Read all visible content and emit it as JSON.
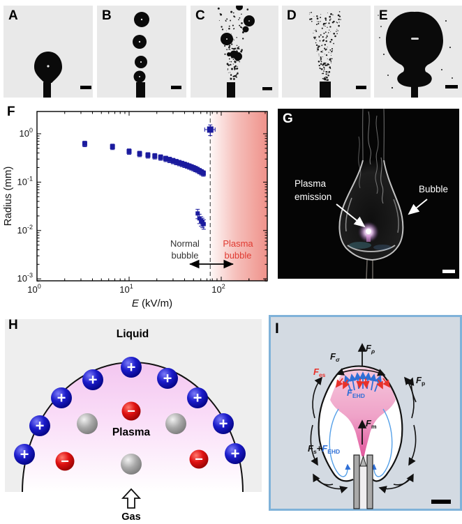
{
  "colors": {
    "marker_navy": "#1b1b9e",
    "plasma_region_red": "#ee8c84",
    "red_accent": "#e03a31",
    "blue_accent": "#2f6fd6",
    "panel_gray": "#e9e9e9",
    "diagram_i_bg": "#d3dae2",
    "diagram_i_border": "#7fb2d9",
    "dome_pink": "#f6cff3"
  },
  "figure": {
    "panels": {
      "A": {
        "label": "A"
      },
      "B": {
        "label": "B"
      },
      "C": {
        "label": "C"
      },
      "D": {
        "label": "D"
      },
      "E": {
        "label": "E"
      },
      "F": {
        "label": "F"
      },
      "G": {
        "label": "G",
        "annotation_plasma_line1": "Plasma",
        "annotation_plasma_line2": "emission",
        "annotation_bubble": "Bubble"
      },
      "H": {
        "label": "H",
        "liquid": "Liquid",
        "plasma": "Plasma",
        "gas": "Gas",
        "plus": "+",
        "minus": "−"
      },
      "I": {
        "label": "I",
        "forces": {
          "f_rho": {
            "main": "F",
            "sub": "ρ"
          },
          "f_sigma": {
            "main": "F",
            "sub": "σ"
          },
          "f_es": {
            "main": "F",
            "sub": "es"
          },
          "f_ehd_top": {
            "main": "F",
            "sub": "EHD"
          },
          "f_p": {
            "main": "F",
            "sub": "p"
          },
          "f_m": {
            "main": "F",
            "sub": "m"
          },
          "f_s": {
            "main": "F",
            "sub": "s"
          },
          "plus_sign": "+",
          "f_ehd_bottom": {
            "main": "F",
            "sub": "EHD"
          }
        }
      }
    }
  },
  "chart_data": {
    "type": "scatter",
    "x_scale": "log",
    "y_scale": "log",
    "xlabel_var": "E",
    "xlabel_rest": " (kV/m)",
    "ylabel": "Radius (mm)",
    "xlim": [
      1,
      316
    ],
    "ylim": [
      0.00091,
      2.9
    ],
    "x_major_ticks": [
      1,
      10,
      100
    ],
    "y_major_ticks": [
      1,
      0.1,
      0.01,
      0.001
    ],
    "grid": false,
    "legend": "none",
    "series": [
      {
        "name": "normal-bubble-radius",
        "marker": "square",
        "color": "#1b1b9e",
        "x": [
          3.3,
          6.6,
          10,
          13,
          16,
          19,
          22,
          25,
          27.5,
          30,
          32.5,
          35,
          37.5,
          40,
          42.5,
          45,
          47.5,
          50,
          52.5,
          55,
          58,
          61,
          64
        ],
        "y": [
          0.62,
          0.54,
          0.43,
          0.385,
          0.36,
          0.345,
          0.325,
          0.305,
          0.29,
          0.275,
          0.262,
          0.25,
          0.24,
          0.23,
          0.221,
          0.212,
          0.204,
          0.196,
          0.188,
          0.18,
          0.17,
          0.161,
          0.152
        ],
        "yerr_rel": 0.13,
        "size": 7
      },
      {
        "name": "satellite-microbubble-radius",
        "marker": "square",
        "color": "#1b1b9e",
        "x": [
          55.5,
          58,
          60.5,
          62.5,
          64.5
        ],
        "y": [
          0.0225,
          0.0178,
          0.0158,
          0.0147,
          0.0136
        ],
        "yerr_rel": 0.22,
        "size": 6
      },
      {
        "name": "plasma-bubble-radius",
        "marker": "square",
        "color": "#1b1b9e",
        "x": [
          76
        ],
        "y": [
          1.22
        ],
        "yerr_rel": 0.25,
        "xerr_rel": 0.13,
        "size": 9
      }
    ],
    "threshold_x": 76,
    "region": {
      "x_from": 76,
      "x_to": 316,
      "color": "#ee8c84"
    },
    "annotations": {
      "normal": {
        "lines": [
          "Normal",
          "bubble"
        ],
        "color": "#333333"
      },
      "plasma": {
        "lines": [
          "Plasma",
          "bubble"
        ],
        "color": "#e03a31"
      }
    }
  }
}
